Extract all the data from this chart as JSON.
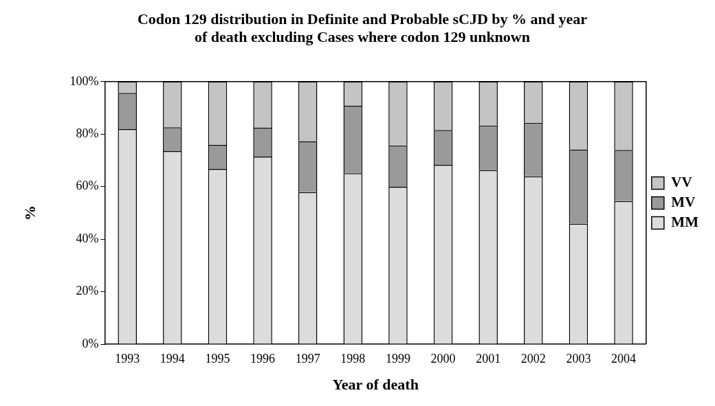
{
  "chart_data": {
    "type": "bar",
    "title": "Codon 129 distribution in Definite and Probable sCJD by % and year of death excluding Cases where codon 129 unknown",
    "xlabel": "Year of death",
    "ylabel": "%",
    "categories": [
      "1993",
      "1994",
      "1995",
      "1996",
      "1997",
      "1998",
      "1999",
      "2000",
      "2001",
      "2002",
      "2003",
      "2004"
    ],
    "stacked": true,
    "series": [
      {
        "name": "MM",
        "color": "#dcdcdc",
        "values": [
          81.9,
          73.5,
          66.7,
          71.4,
          57.9,
          65.1,
          59.9,
          68.3,
          66.3,
          63.9,
          45.9,
          54.5
        ]
      },
      {
        "name": "MV",
        "color": "#9a9a9a",
        "values": [
          13.8,
          9.1,
          9.2,
          11.0,
          19.4,
          25.7,
          15.8,
          13.3,
          17.0,
          20.4,
          28.3,
          19.5
        ]
      },
      {
        "name": "VV",
        "color": "#c4c4c4",
        "values": [
          4.3,
          17.4,
          24.1,
          17.6,
          22.7,
          9.2,
          24.3,
          18.4,
          16.7,
          15.7,
          25.8,
          26.0
        ]
      }
    ],
    "ylim": [
      0,
      100
    ],
    "yticks": [
      {
        "value": 0,
        "label": "0%"
      },
      {
        "value": 20,
        "label": "20%"
      },
      {
        "value": 40,
        "label": "40%"
      },
      {
        "value": 60,
        "label": "60%"
      },
      {
        "value": 80,
        "label": "80%"
      },
      {
        "value": 100,
        "label": "100%"
      }
    ],
    "grid": false,
    "legend": "right"
  }
}
